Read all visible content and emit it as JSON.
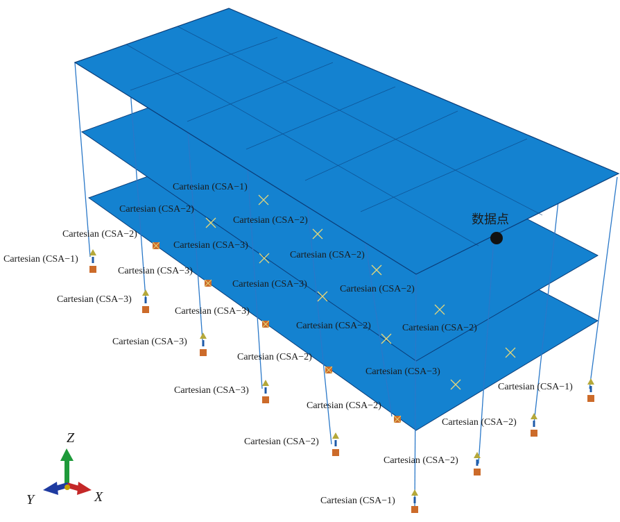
{
  "scene": {
    "data_point_label": "数据点"
  },
  "axes": {
    "x": "X",
    "y": "Y",
    "z": "Z"
  },
  "labels": [
    "Cartesian (CSA−1)",
    "Cartesian (CSA−2)",
    "Cartesian (CSA−2)",
    "Cartesian (CSA−1)",
    "Cartesian (CSA−3)",
    "Cartesian (CSA−2)",
    "Cartesian (CSA−3)",
    "Cartesian (CSA−2)",
    "Cartesian (CSA−3)",
    "Cartesian (CSA−2)",
    "Cartesian (CSA−3)",
    "Cartesian (CSA−3)",
    "Cartesian (CSA−2)",
    "Cartesian (CSA−2)",
    "Cartesian (CSA−3)",
    "Cartesian (CSA−2)",
    "Cartesian (CSA−3)",
    "Cartesian (CSA−1)",
    "Cartesian (CSA−3)",
    "Cartesian (CSA−2)",
    "Cartesian (CSA−2)",
    "Cartesian (CSA−2)",
    "Cartesian (CSA−2)",
    "Cartesian (CSA−1)"
  ],
  "colors": {
    "slab": "#1482d0",
    "column": "#2a78c8",
    "grid_line": "#0a3c78",
    "cross_mark": "#e6d77a",
    "support_triangle": "#b5a83a",
    "support_box": "#cc6b2a",
    "axis_z": "#1e9a3a",
    "axis_x": "#c42828",
    "axis_y": "#1e3aa0"
  }
}
